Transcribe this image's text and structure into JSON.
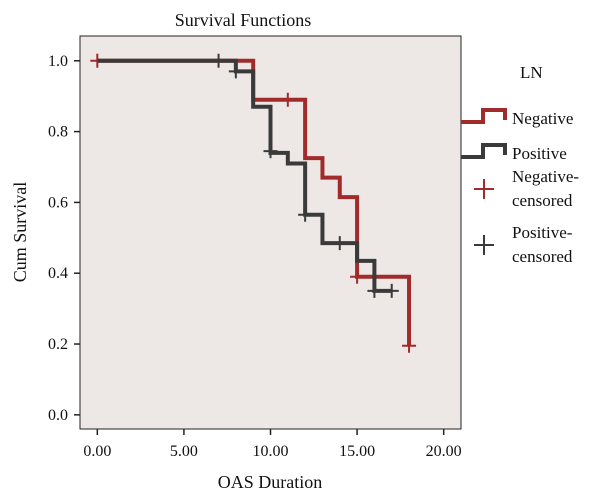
{
  "chart_data": {
    "type": "line",
    "title": "Survival Functions",
    "xlabel": "OAS Duration",
    "ylabel": "Cum Survival",
    "xlim": [
      -1,
      21
    ],
    "ylim": [
      -0.04,
      1.07
    ],
    "x_ticks": [
      0,
      5,
      10,
      15,
      20
    ],
    "x_tick_labels": [
      "0.00",
      "5.00",
      "10.00",
      "15.00",
      "20.00"
    ],
    "y_ticks": [
      0.0,
      0.2,
      0.4,
      0.6,
      0.8,
      1.0
    ],
    "y_tick_labels": [
      "0.0",
      "0.2",
      "0.4",
      "0.6",
      "0.8",
      "1.0"
    ],
    "grid": false,
    "legend": {
      "title": "LN",
      "placement": "right",
      "entries": [
        {
          "label": "Negative",
          "kind": "line",
          "color": "#a12a2a"
        },
        {
          "label": "Positive",
          "kind": "line",
          "color": "#3a3a3a"
        },
        {
          "label": "Negative-censored",
          "lines": [
            "Negative-",
            "censored"
          ],
          "kind": "censor",
          "color": "#a12a2a"
        },
        {
          "label": "Positive-censored",
          "lines": [
            "Positive-",
            "censored"
          ],
          "kind": "censor",
          "color": "#3a3a3a"
        }
      ]
    },
    "series": [
      {
        "name": "Negative",
        "color": "#a12a2a",
        "steps": [
          [
            0,
            1.0
          ],
          [
            9,
            0.89
          ],
          [
            12,
            0.725
          ],
          [
            13,
            0.67
          ],
          [
            14,
            0.615
          ],
          [
            15,
            0.39
          ],
          [
            18,
            0.195
          ]
        ],
        "end_x": 18,
        "censored": [
          [
            0,
            1.0
          ],
          [
            11,
            0.89
          ],
          [
            15,
            0.39
          ],
          [
            18,
            0.195
          ]
        ]
      },
      {
        "name": "Positive",
        "color": "#3a3a3a",
        "steps": [
          [
            0,
            1.0
          ],
          [
            8,
            0.97
          ],
          [
            9,
            0.87
          ],
          [
            10,
            0.74
          ],
          [
            11,
            0.71
          ],
          [
            12,
            0.565
          ],
          [
            13,
            0.485
          ],
          [
            15,
            0.435
          ],
          [
            16,
            0.35
          ]
        ],
        "end_x": 17,
        "censored": [
          [
            7,
            1.0
          ],
          [
            8,
            0.97
          ],
          [
            10,
            0.745
          ],
          [
            12,
            0.565
          ],
          [
            14,
            0.485
          ],
          [
            16,
            0.35
          ],
          [
            17,
            0.35
          ]
        ]
      }
    ]
  }
}
